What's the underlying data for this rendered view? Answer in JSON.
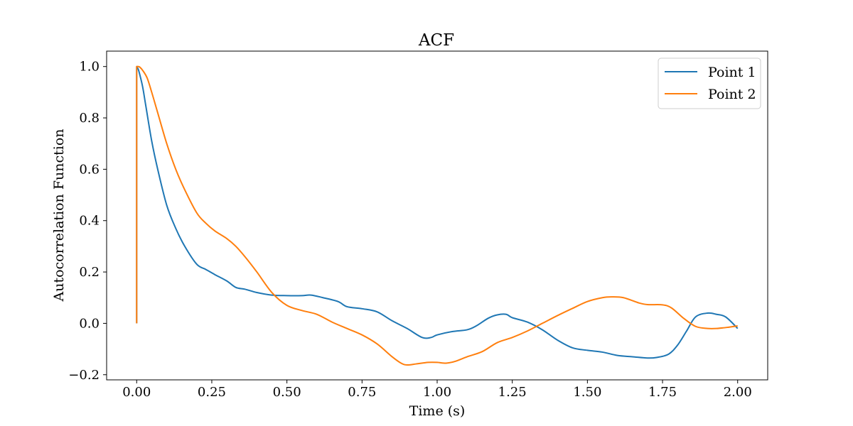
{
  "chart_data": {
    "type": "line",
    "title": "ACF",
    "xlabel": "Time (s)",
    "ylabel": "Autocorrelation Function",
    "xlim": [
      -0.1,
      2.1
    ],
    "ylim": [
      -0.22,
      1.06
    ],
    "xticks": [
      0.0,
      0.25,
      0.5,
      0.75,
      1.0,
      1.25,
      1.5,
      1.75,
      2.0
    ],
    "xtick_labels": [
      "0.00",
      "0.25",
      "0.50",
      "0.75",
      "1.00",
      "1.25",
      "1.50",
      "1.75",
      "2.00"
    ],
    "yticks": [
      -0.2,
      0.0,
      0.2,
      0.4,
      0.6,
      0.8,
      1.0
    ],
    "ytick_labels": [
      "−0.2",
      "0.0",
      "0.2",
      "0.4",
      "0.6",
      "0.8",
      "1.0"
    ],
    "grid": false,
    "legend_position": "top-right",
    "series": [
      {
        "name": "Point 1",
        "color": "#1f77b4",
        "x": [
          0.0,
          0.0,
          0.005,
          0.01,
          0.02,
          0.03,
          0.05,
          0.07,
          0.1,
          0.13,
          0.16,
          0.2,
          0.23,
          0.26,
          0.3,
          0.33,
          0.36,
          0.4,
          0.45,
          0.5,
          0.55,
          0.58,
          0.62,
          0.67,
          0.7,
          0.75,
          0.8,
          0.85,
          0.9,
          0.95,
          0.98,
          1.0,
          1.05,
          1.1,
          1.13,
          1.17,
          1.2,
          1.23,
          1.25,
          1.3,
          1.35,
          1.4,
          1.45,
          1.5,
          1.55,
          1.6,
          1.65,
          1.7,
          1.73,
          1.77,
          1.8,
          1.83,
          1.86,
          1.9,
          1.93,
          1.96,
          2.0
        ],
        "y": [
          0.0,
          1.0,
          0.99,
          0.97,
          0.92,
          0.85,
          0.71,
          0.6,
          0.46,
          0.37,
          0.3,
          0.23,
          0.21,
          0.19,
          0.165,
          0.14,
          0.133,
          0.12,
          0.11,
          0.108,
          0.108,
          0.11,
          0.1,
          0.085,
          0.065,
          0.057,
          0.045,
          0.01,
          -0.02,
          -0.055,
          -0.055,
          -0.045,
          -0.032,
          -0.025,
          -0.01,
          0.02,
          0.033,
          0.035,
          0.022,
          0.005,
          -0.025,
          -0.065,
          -0.095,
          -0.105,
          -0.112,
          -0.125,
          -0.13,
          -0.135,
          -0.133,
          -0.12,
          -0.085,
          -0.03,
          0.025,
          0.04,
          0.035,
          0.025,
          -0.02
        ]
      },
      {
        "name": "Point 2",
        "color": "#ff7f0e",
        "x": [
          0.0,
          0.0,
          0.005,
          0.01,
          0.02,
          0.035,
          0.05,
          0.07,
          0.1,
          0.13,
          0.16,
          0.2,
          0.23,
          0.26,
          0.3,
          0.33,
          0.36,
          0.4,
          0.45,
          0.5,
          0.55,
          0.6,
          0.65,
          0.7,
          0.75,
          0.8,
          0.85,
          0.88,
          0.9,
          0.93,
          0.97,
          1.0,
          1.03,
          1.06,
          1.1,
          1.15,
          1.2,
          1.25,
          1.3,
          1.35,
          1.4,
          1.45,
          1.5,
          1.55,
          1.58,
          1.62,
          1.67,
          1.7,
          1.75,
          1.78,
          1.82,
          1.86,
          1.9,
          1.93,
          1.97,
          2.0
        ],
        "y": [
          0.0,
          1.0,
          1.0,
          0.998,
          0.985,
          0.955,
          0.9,
          0.82,
          0.7,
          0.6,
          0.52,
          0.43,
          0.39,
          0.36,
          0.33,
          0.3,
          0.26,
          0.2,
          0.12,
          0.07,
          0.05,
          0.035,
          0.005,
          -0.02,
          -0.045,
          -0.08,
          -0.13,
          -0.155,
          -0.162,
          -0.158,
          -0.152,
          -0.152,
          -0.155,
          -0.148,
          -0.13,
          -0.11,
          -0.075,
          -0.055,
          -0.03,
          0.0,
          0.03,
          0.058,
          0.085,
          0.1,
          0.103,
          0.1,
          0.08,
          0.073,
          0.072,
          0.06,
          0.02,
          -0.012,
          -0.02,
          -0.02,
          -0.015,
          -0.01
        ]
      }
    ]
  }
}
